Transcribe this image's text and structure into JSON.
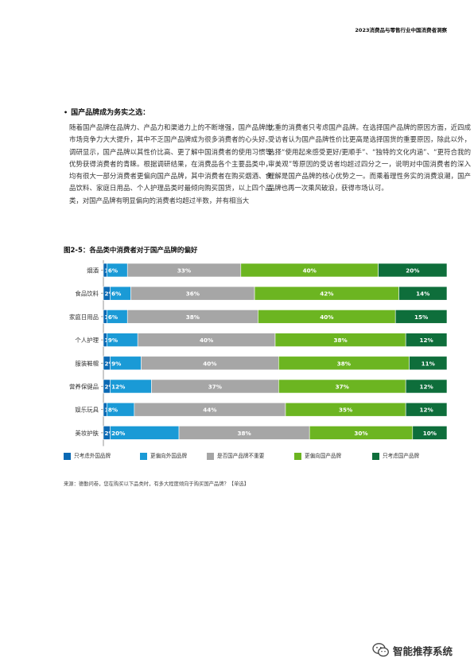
{
  "header": {
    "title": "2023消费品与零售行业中国消费者洞察"
  },
  "section": {
    "bullet": "•",
    "heading": "国产品牌成为务实之选：",
    "col_left": "随着国产品牌在品牌力、产品力和渠道力上的不断增强，国产品牌的市场竞争力大大提升，其中不乏国产品牌成为很多消费者的心头好。调研显示，国产品牌以其性价比高、更了解中国消费者的使用习惯等优势获得消费者的青睐。根据调研结果，在消费品各个主要品类中，均有很大一部分消费者更偏向国产品牌，其中消费者在购买烟酒、食品饮料、家庭日用品、个人护理品类时最倾向购买国货，以上四个品类，对国产品牌有明显偏向的消费者均超过半数，并有相当大",
    "col_right": "比重的消费者只考虑国产品牌。在选择国产品牌的原因方面，近四成受访者认为国产品牌性价比更高是选择国货的重要原因，除此以外，选择“使用起来感受更好/更顺手”、“独特的文化内涵”、“更符合我的审美观”等原因的受访者均超过四分之一，说明对中国消费者的深入理解是国产品牌的核心优势之一。而乘着理性务实的消费浪潮，国产品牌也再一次乘风破浪，获得市场认可。"
  },
  "figure": {
    "title": "图2-5：各品类中消费者对于国产品牌的偏好",
    "source": "来源：德勤问卷，您在购买以下品类时，有多大程度倾向于购买国产品牌？【单选】"
  },
  "chart_data": {
    "type": "bar",
    "orientation": "horizontal",
    "stacked": true,
    "percent": true,
    "categories": [
      "烟酒",
      "食品饮料",
      "家庭日用品",
      "个人护理",
      "服装鞋帽",
      "营养保健品",
      "娱乐玩具",
      "美妆护肤"
    ],
    "series": [
      {
        "name": "只考虑外国品牌",
        "color": "#0a69b4",
        "values": [
          1,
          2,
          1,
          1,
          2,
          2,
          1,
          2
        ]
      },
      {
        "name": "更偏向外国品牌",
        "color": "#1a9ad6",
        "values": [
          6,
          6,
          6,
          9,
          9,
          12,
          8,
          20
        ]
      },
      {
        "name": "是否国产品牌不重要",
        "color": "#a6a6a6",
        "values": [
          33,
          36,
          38,
          40,
          40,
          37,
          44,
          38
        ]
      },
      {
        "name": "更偏向国产品牌",
        "color": "#6cb521",
        "values": [
          40,
          42,
          40,
          38,
          38,
          37,
          35,
          30
        ]
      },
      {
        "name": "只考虑国产品牌",
        "color": "#0e6e3b",
        "values": [
          20,
          14,
          15,
          12,
          11,
          12,
          12,
          10
        ]
      }
    ],
    "xlim": [
      0,
      100
    ],
    "legend_position": "bottom"
  },
  "watermark": {
    "text": "智能推荐系统",
    "icon": "wechat-icon"
  }
}
